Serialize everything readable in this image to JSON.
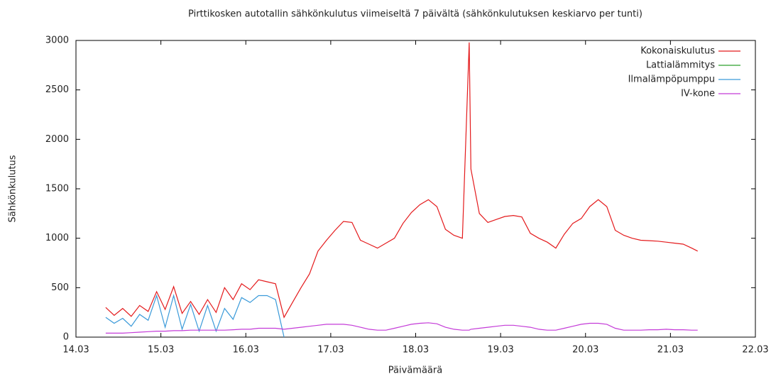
{
  "chart_data": {
    "type": "line",
    "title": "Pirttikosken autotallin sähkönkulutus viimeiseltä 7 päivältä (sähkönkulutuksen keskiarvo per tunti)",
    "x_label": "Päivämäärä",
    "y_label": "Sähkönkulutus",
    "x": [
      14.35,
      14.45,
      14.55,
      14.65,
      14.75,
      14.85,
      14.95,
      15.05,
      15.15,
      15.25,
      15.35,
      15.45,
      15.55,
      15.65,
      15.75,
      15.85,
      15.95,
      16.05,
      16.15,
      16.25,
      16.35,
      16.45,
      16.55,
      16.65,
      16.75,
      16.85,
      16.95,
      17.05,
      17.15,
      17.25,
      17.35,
      17.45,
      17.55,
      17.65,
      17.75,
      17.85,
      17.95,
      18.05,
      18.15,
      18.25,
      18.35,
      18.45,
      18.55,
      18.63,
      18.65,
      18.75,
      18.85,
      18.95,
      19.05,
      19.15,
      19.25,
      19.35,
      19.45,
      19.55,
      19.65,
      19.75,
      19.85,
      19.95,
      20.05,
      20.15,
      20.25,
      20.35,
      20.45,
      20.55,
      20.65,
      20.75,
      20.85,
      20.95,
      21.05,
      21.15,
      21.25,
      21.32
    ],
    "series": [
      {
        "name": "Kokonaiskulutus",
        "color": "#e41a1c",
        "values": [
          300,
          220,
          290,
          210,
          320,
          260,
          460,
          280,
          510,
          240,
          360,
          230,
          380,
          250,
          500,
          380,
          540,
          480,
          580,
          560,
          540,
          200,
          350,
          500,
          640,
          870,
          980,
          1080,
          1170,
          1160,
          980,
          940,
          900,
          950,
          1000,
          1150,
          1260,
          1340,
          1390,
          1320,
          1090,
          1030,
          1000,
          2980,
          1700,
          1250,
          1160,
          1190,
          1220,
          1230,
          1215,
          1050,
          1000,
          960,
          900,
          1040,
          1150,
          1200,
          1320,
          1390,
          1320,
          1080,
          1030,
          1000,
          980,
          975,
          970,
          960,
          950,
          940,
          900,
          870
        ]
      },
      {
        "name": "Lattialämmitys",
        "color": "#2ca02c",
        "values": [
          null,
          null,
          null,
          null,
          null,
          null,
          null,
          null,
          null,
          null,
          null,
          null,
          null,
          null,
          null,
          null,
          null,
          null,
          null,
          null,
          null,
          null,
          null,
          null,
          null,
          null,
          null,
          null,
          null,
          null,
          null,
          null,
          null,
          null,
          null,
          null,
          null,
          null,
          null,
          null,
          null,
          null,
          null,
          null,
          null,
          null,
          null,
          null,
          null,
          null,
          null,
          null,
          null,
          null,
          null,
          null,
          null,
          null,
          null,
          null,
          null,
          null,
          null,
          null,
          null,
          null,
          null,
          null,
          null,
          null,
          null,
          null
        ]
      },
      {
        "name": "Ilmalämpöpumppu",
        "color": "#3a9ad9",
        "values": [
          200,
          140,
          190,
          110,
          230,
          170,
          420,
          100,
          420,
          80,
          330,
          60,
          320,
          60,
          290,
          180,
          400,
          350,
          420,
          420,
          380,
          0,
          null,
          null,
          null,
          null,
          null,
          null,
          null,
          null,
          null,
          null,
          null,
          null,
          null,
          null,
          null,
          null,
          null,
          null,
          null,
          null,
          null,
          null,
          null,
          null,
          null,
          null,
          null,
          null,
          null,
          null,
          null,
          null,
          null,
          null,
          null,
          null,
          null,
          null,
          null,
          null,
          null,
          null,
          null,
          null,
          null,
          null,
          null,
          null,
          null,
          null
        ]
      },
      {
        "name": "IV-kone",
        "color": "#c43bd8",
        "values": [
          40,
          40,
          40,
          45,
          50,
          55,
          60,
          60,
          65,
          65,
          70,
          70,
          70,
          70,
          70,
          75,
          80,
          80,
          90,
          90,
          90,
          80,
          90,
          100,
          110,
          120,
          130,
          130,
          130,
          120,
          100,
          80,
          70,
          70,
          90,
          110,
          130,
          140,
          145,
          135,
          100,
          80,
          70,
          70,
          80,
          90,
          100,
          110,
          120,
          120,
          110,
          100,
          80,
          70,
          70,
          90,
          110,
          130,
          140,
          140,
          130,
          90,
          70,
          70,
          70,
          75,
          75,
          80,
          75,
          75,
          70,
          70
        ]
      }
    ],
    "xlim": [
      14,
      22
    ],
    "xticks": [
      {
        "value": 14,
        "label": "14.03"
      },
      {
        "value": 15,
        "label": "15.03"
      },
      {
        "value": 16,
        "label": "16.03"
      },
      {
        "value": 17,
        "label": "17.03"
      },
      {
        "value": 18,
        "label": "18.03"
      },
      {
        "value": 19,
        "label": "19.03"
      },
      {
        "value": 20,
        "label": "20.03"
      },
      {
        "value": 21,
        "label": "21.03"
      },
      {
        "value": 22,
        "label": "22.03"
      }
    ],
    "ylim": [
      0,
      3000
    ],
    "yticks": [
      0,
      500,
      1000,
      1500,
      2000,
      2500,
      3000
    ],
    "legend": "top-right"
  }
}
